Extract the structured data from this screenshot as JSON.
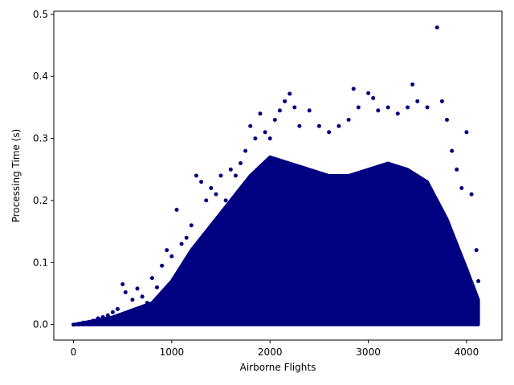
{
  "chart_data": {
    "type": "scatter",
    "title": "",
    "xlabel": "Airborne Flights",
    "ylabel": "Processing Time (s)",
    "xlim": [
      -200,
      4360
    ],
    "ylim": [
      -0.025,
      0.505
    ],
    "xticks": [
      0,
      1000,
      2000,
      3000,
      4000
    ],
    "xtick_labels": [
      "0",
      "1000",
      "2000",
      "3000",
      "4000"
    ],
    "yticks": [
      0.0,
      0.1,
      0.2,
      0.3,
      0.4,
      0.5
    ],
    "ytick_labels": [
      "0.0",
      "0.1",
      "0.2",
      "0.3",
      "0.4",
      "0.5"
    ],
    "grid": false,
    "legend": "none",
    "marker_color": "#000080",
    "series": [
      {
        "points": [
          [
            0,
            0.0
          ],
          [
            50,
            0.001
          ],
          [
            100,
            0.003
          ],
          [
            150,
            0.002
          ],
          [
            200,
            0.006
          ],
          [
            250,
            0.01
          ],
          [
            300,
            0.012
          ],
          [
            350,
            0.015
          ],
          [
            400,
            0.02
          ],
          [
            450,
            0.025
          ],
          [
            500,
            0.065
          ],
          [
            530,
            0.052
          ],
          [
            600,
            0.04
          ],
          [
            650,
            0.058
          ],
          [
            700,
            0.045
          ],
          [
            750,
            0.035
          ],
          [
            800,
            0.075
          ],
          [
            850,
            0.06
          ],
          [
            900,
            0.095
          ],
          [
            950,
            0.12
          ],
          [
            1000,
            0.11
          ],
          [
            1050,
            0.185
          ],
          [
            1100,
            0.13
          ],
          [
            1150,
            0.14
          ],
          [
            1200,
            0.16
          ],
          [
            1250,
            0.24
          ],
          [
            1300,
            0.23
          ],
          [
            1350,
            0.2
          ],
          [
            1400,
            0.22
          ],
          [
            1450,
            0.21
          ],
          [
            1500,
            0.24
          ],
          [
            1550,
            0.2
          ],
          [
            1600,
            0.25
          ],
          [
            1650,
            0.24
          ],
          [
            1700,
            0.26
          ],
          [
            1750,
            0.28
          ],
          [
            1800,
            0.32
          ],
          [
            1850,
            0.3
          ],
          [
            1900,
            0.34
          ],
          [
            1950,
            0.31
          ],
          [
            2000,
            0.3
          ],
          [
            2050,
            0.33
          ],
          [
            2100,
            0.345
          ],
          [
            2150,
            0.36
          ],
          [
            2200,
            0.372
          ],
          [
            2250,
            0.35
          ],
          [
            2300,
            0.32
          ],
          [
            2400,
            0.345
          ],
          [
            2500,
            0.32
          ],
          [
            2600,
            0.31
          ],
          [
            2700,
            0.32
          ],
          [
            2800,
            0.33
          ],
          [
            2850,
            0.38
          ],
          [
            2900,
            0.35
          ],
          [
            3000,
            0.373
          ],
          [
            3050,
            0.365
          ],
          [
            3100,
            0.345
          ],
          [
            3200,
            0.35
          ],
          [
            3300,
            0.34
          ],
          [
            3400,
            0.35
          ],
          [
            3450,
            0.387
          ],
          [
            3500,
            0.36
          ],
          [
            3600,
            0.35
          ],
          [
            3700,
            0.479
          ],
          [
            3750,
            0.36
          ],
          [
            3800,
            0.33
          ],
          [
            3850,
            0.28
          ],
          [
            3900,
            0.25
          ],
          [
            3950,
            0.22
          ],
          [
            4000,
            0.31
          ],
          [
            4050,
            0.21
          ],
          [
            4100,
            0.12
          ],
          [
            4120,
            0.07
          ]
        ]
      }
    ],
    "dense_region": {
      "description_points": [
        [
          0,
          0.0
        ],
        [
          400,
          0.012
        ],
        [
          800,
          0.035
        ],
        [
          1000,
          0.07
        ],
        [
          1200,
          0.12
        ],
        [
          1400,
          0.16
        ],
        [
          1600,
          0.2
        ],
        [
          1800,
          0.24
        ],
        [
          2000,
          0.27
        ],
        [
          2200,
          0.26
        ],
        [
          2400,
          0.25
        ],
        [
          2600,
          0.24
        ],
        [
          2800,
          0.24
        ],
        [
          3000,
          0.25
        ],
        [
          3200,
          0.26
        ],
        [
          3400,
          0.25
        ],
        [
          3600,
          0.23
        ],
        [
          3800,
          0.17
        ],
        [
          4000,
          0.09
        ],
        [
          4120,
          0.04
        ],
        [
          4120,
          0.0
        ]
      ]
    }
  }
}
